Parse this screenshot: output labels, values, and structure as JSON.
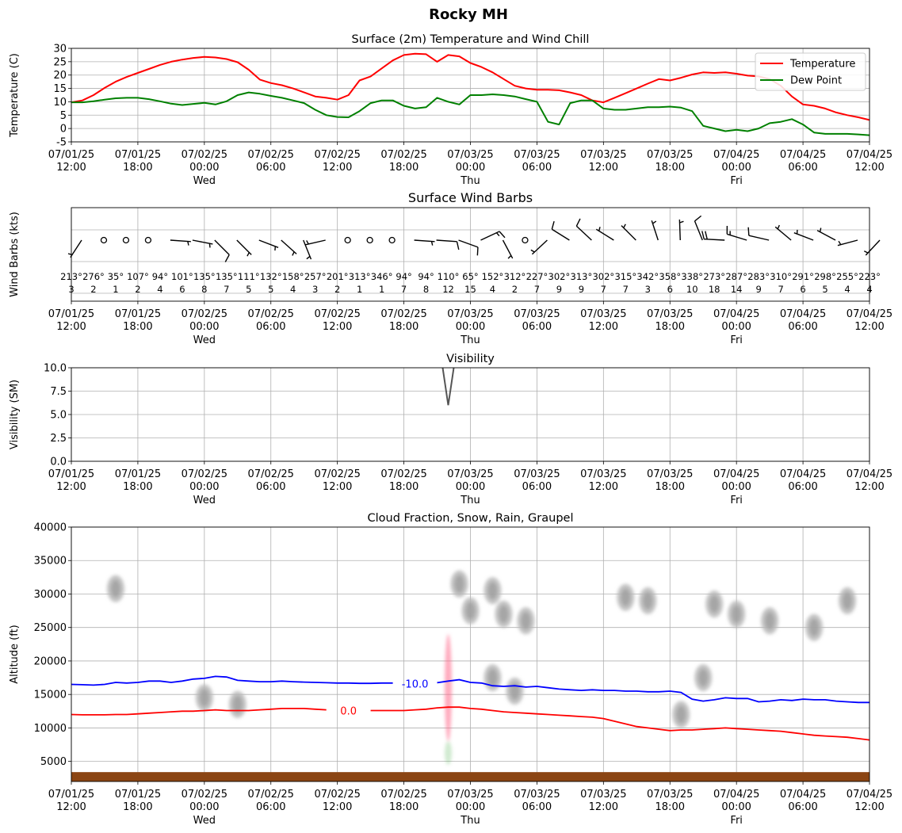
{
  "figure": {
    "title": "Rocky MH"
  },
  "time_axis": {
    "ticks": [
      "07/01/25 12:00",
      "07/01/25 18:00",
      "07/02/25 00:00",
      "07/02/25 06:00",
      "07/02/25 12:00",
      "07/02/25 18:00",
      "07/03/25 00:00",
      "07/03/25 06:00",
      "07/03/25 12:00",
      "07/03/25 18:00",
      "07/04/25 00:00",
      "07/04/25 06:00",
      "07/04/25 12:00"
    ],
    "day_labels": [
      "",
      "",
      "Wed",
      "",
      "",
      "",
      "Thu",
      "",
      "",
      "",
      "Fri",
      "",
      ""
    ]
  },
  "chart_data": [
    {
      "type": "line",
      "title": "Surface (2m) Temperature and Wind Chill",
      "ylabel": "Temperature (C)",
      "ylim": [
        -5,
        30
      ],
      "yticks": [
        -5,
        0,
        5,
        10,
        15,
        20,
        25,
        30
      ],
      "grid": true,
      "legend": "top-right",
      "x": [
        "07/01/25 12:00",
        "07/01/25 13:00",
        "07/01/25 14:00",
        "07/01/25 15:00",
        "07/01/25 16:00",
        "07/01/25 17:00",
        "07/01/25 18:00",
        "07/01/25 19:00",
        "07/01/25 20:00",
        "07/01/25 21:00",
        "07/01/25 22:00",
        "07/01/25 23:00",
        "07/02/25 00:00",
        "07/02/25 01:00",
        "07/02/25 02:00",
        "07/02/25 03:00",
        "07/02/25 04:00",
        "07/02/25 05:00",
        "07/02/25 06:00",
        "07/02/25 07:00",
        "07/02/25 08:00",
        "07/02/25 09:00",
        "07/02/25 10:00",
        "07/02/25 11:00",
        "07/02/25 12:00",
        "07/02/25 13:00",
        "07/02/25 14:00",
        "07/02/25 15:00",
        "07/02/25 16:00",
        "07/02/25 17:00",
        "07/02/25 18:00",
        "07/02/25 19:00",
        "07/02/25 20:00",
        "07/02/25 21:00",
        "07/02/25 22:00",
        "07/02/25 23:00",
        "07/03/25 00:00",
        "07/03/25 01:00",
        "07/03/25 02:00",
        "07/03/25 03:00",
        "07/03/25 04:00",
        "07/03/25 05:00",
        "07/03/25 06:00",
        "07/03/25 07:00",
        "07/03/25 08:00",
        "07/03/25 09:00",
        "07/03/25 10:00",
        "07/03/25 11:00",
        "07/03/25 12:00",
        "07/03/25 13:00",
        "07/03/25 14:00",
        "07/03/25 15:00",
        "07/03/25 16:00",
        "07/03/25 17:00",
        "07/03/25 18:00",
        "07/03/25 19:00",
        "07/03/25 20:00",
        "07/03/25 21:00",
        "07/03/25 22:00",
        "07/03/25 23:00",
        "07/04/25 00:00",
        "07/04/25 01:00",
        "07/04/25 02:00",
        "07/04/25 03:00",
        "07/04/25 04:00",
        "07/04/25 05:00",
        "07/04/25 06:00",
        "07/04/25 07:00",
        "07/04/25 08:00",
        "07/04/25 09:00",
        "07/04/25 10:00",
        "07/04/25 11:00",
        "07/04/25 12:00"
      ],
      "series": [
        {
          "name": "Temperature",
          "color": "#ff0000",
          "values": [
            9.8,
            10.5,
            12.5,
            15.2,
            17.5,
            19.3,
            20.8,
            22.3,
            23.8,
            25.0,
            25.8,
            26.4,
            26.8,
            26.6,
            26.0,
            24.8,
            22.0,
            18.3,
            17.0,
            16.2,
            15.0,
            13.5,
            12.0,
            11.5,
            10.8,
            12.5,
            18.0,
            19.5,
            22.5,
            25.5,
            27.5,
            28.0,
            27.8,
            25.0,
            27.5,
            27.0,
            24.5,
            23.0,
            21.0,
            18.5,
            16.0,
            15.0,
            14.5,
            14.5,
            14.3,
            13.5,
            12.5,
            10.5,
            9.8,
            11.5,
            13.2,
            15.0,
            16.8,
            18.5,
            18.0,
            19.0,
            20.2,
            21.0,
            20.8,
            21.0,
            20.5,
            19.8,
            19.5,
            18.5,
            16.0,
            12.0,
            9.0,
            8.5,
            7.5,
            6.0,
            5.0,
            4.2,
            3.2
          ]
        },
        {
          "name": "Dew Point",
          "color": "#008000",
          "values": [
            9.8,
            9.8,
            10.2,
            10.8,
            11.3,
            11.5,
            11.5,
            11.0,
            10.2,
            9.3,
            8.8,
            9.2,
            9.6,
            9.0,
            10.2,
            12.5,
            13.5,
            13.0,
            12.2,
            11.5,
            10.5,
            9.5,
            7.0,
            5.0,
            4.3,
            4.2,
            6.5,
            9.5,
            10.5,
            10.5,
            8.5,
            7.5,
            8.0,
            11.5,
            10.0,
            9.0,
            12.5,
            12.5,
            12.8,
            12.5,
            12.0,
            11.0,
            10.0,
            2.5,
            1.5,
            9.5,
            10.5,
            10.5,
            7.5,
            7.0,
            7.0,
            7.5,
            8.0,
            8.0,
            8.2,
            7.8,
            6.5,
            1.0,
            0.0,
            -1.0,
            -0.5,
            -1.0,
            0.0,
            2.0,
            2.5,
            3.5,
            1.5,
            -1.5,
            -2.0,
            -2.0,
            -2.0,
            -2.2,
            -2.5
          ]
        }
      ]
    },
    {
      "type": "scatter",
      "title": "Surface Wind Barbs",
      "ylabel": "Wind Barbs (kts)",
      "grid": true,
      "x": [
        "07/01/25 12:00",
        "07/01/25 14:00",
        "07/01/25 16:00",
        "07/01/25 18:00",
        "07/01/25 20:00",
        "07/01/25 22:00",
        "07/02/25 00:00",
        "07/02/25 02:00",
        "07/02/25 04:00",
        "07/02/25 06:00",
        "07/02/25 08:00",
        "07/02/25 10:00",
        "07/02/25 12:00",
        "07/02/25 14:00",
        "07/02/25 16:00",
        "07/02/25 18:00",
        "07/02/25 20:00",
        "07/02/25 22:00",
        "07/03/25 00:00",
        "07/03/25 02:00",
        "07/03/25 04:00",
        "07/03/25 06:00",
        "07/03/25 08:00",
        "07/03/25 10:00",
        "07/03/25 12:00",
        "07/03/25 14:00",
        "07/03/25 16:00",
        "07/03/25 18:00",
        "07/03/25 20:00",
        "07/03/25 22:00",
        "07/04/25 00:00",
        "07/04/25 02:00",
        "07/04/25 04:00",
        "07/04/25 06:00",
        "07/04/25 08:00",
        "07/04/25 10:00",
        "07/04/25 12:00"
      ],
      "directions": [
        213,
        276,
        35,
        107,
        94,
        101,
        135,
        135,
        111,
        132,
        158,
        257,
        201,
        313,
        346,
        94,
        94,
        110,
        65,
        152,
        312,
        227,
        302,
        313,
        302,
        315,
        342,
        358,
        338,
        273,
        287,
        283,
        310,
        291,
        298,
        255,
        223
      ],
      "speeds": [
        3,
        2,
        1,
        2,
        4,
        6,
        8,
        7,
        5,
        5,
        4,
        3,
        2,
        1,
        1,
        7,
        8,
        12,
        15,
        4,
        2,
        7,
        9,
        9,
        7,
        7,
        3,
        6,
        10,
        18,
        14,
        9,
        7,
        6,
        5,
        4,
        4
      ]
    },
    {
      "type": "line",
      "title": "Visibility",
      "ylabel": "Visibility (SM)",
      "ylim": [
        0,
        10
      ],
      "yticks": [
        "0.0",
        "2.5",
        "5.0",
        "7.5",
        "10.0"
      ],
      "grid": true,
      "x": [
        "07/02/25 21:30",
        "07/02/25 22:00",
        "07/02/25 22:30"
      ],
      "values": [
        10.0,
        6.0,
        10.0
      ],
      "color": "#555555"
    },
    {
      "type": "area",
      "title": "Cloud Fraction, Snow, Rain, Graupel",
      "ylabel": "Altitude (ft)",
      "ylim": [
        2000,
        40000
      ],
      "yticks": [
        5000,
        10000,
        15000,
        20000,
        25000,
        30000,
        35000,
        40000
      ],
      "grid": true,
      "contours": [
        {
          "name": "-10.0",
          "color": "#0000ff",
          "values": [
            16500,
            16450,
            16400,
            16500,
            16800,
            16700,
            16800,
            17000,
            17000,
            16800,
            17000,
            17300,
            17400,
            17700,
            17600,
            17100,
            17000,
            16900,
            16900,
            17000,
            16900,
            16850,
            16800,
            16750,
            16700,
            16700,
            16650,
            16650,
            16700,
            16700,
            16650,
            16600,
            16800,
            16750,
            17000,
            17200,
            16800,
            16700,
            16300,
            16200,
            16300,
            16100,
            16200,
            16000,
            15800,
            15700,
            15600,
            15700,
            15600,
            15600,
            15500,
            15500,
            15400,
            15400,
            15500,
            15300,
            14300,
            14000,
            14200,
            14500,
            14400,
            14400,
            13900,
            14000,
            14200,
            14100,
            14300,
            14200,
            14200,
            14000,
            13900,
            13800,
            13800
          ]
        },
        {
          "name": "0.0",
          "color": "#ff0000",
          "values": [
            12000,
            11950,
            11950,
            11950,
            12000,
            12000,
            12100,
            12200,
            12300,
            12400,
            12500,
            12500,
            12600,
            12700,
            12600,
            12600,
            12600,
            12700,
            12800,
            12900,
            12900,
            12900,
            12800,
            12700,
            12600,
            12600,
            12600,
            12600,
            12600,
            12600,
            12600,
            12700,
            12800,
            13000,
            13100,
            13100,
            12900,
            12800,
            12600,
            12400,
            12300,
            12200,
            12100,
            12000,
            11900,
            11800,
            11700,
            11600,
            11400,
            11000,
            10600,
            10200,
            10000,
            9800,
            9600,
            9700,
            9700,
            9800,
            9900,
            10000,
            9900,
            9800,
            9700,
            9600,
            9500,
            9300,
            9100,
            8900,
            8800,
            8700,
            8600,
            8400,
            8200
          ]
        }
      ],
      "cloud_cells": [
        {
          "x": "07/01/25 16:00",
          "y": 30800
        },
        {
          "x": "07/02/25 00:00",
          "y": 14500
        },
        {
          "x": "07/02/25 03:00",
          "y": 13500
        },
        {
          "x": "07/02/25 23:00",
          "y": 31500
        },
        {
          "x": "07/03/25 00:00",
          "y": 27500
        },
        {
          "x": "07/03/25 02:00",
          "y": 30500
        },
        {
          "x": "07/03/25 03:00",
          "y": 27000
        },
        {
          "x": "07/03/25 02:00",
          "y": 17500
        },
        {
          "x": "07/03/25 04:00",
          "y": 15500
        },
        {
          "x": "07/03/25 05:00",
          "y": 26000
        },
        {
          "x": "07/03/25 14:00",
          "y": 29500
        },
        {
          "x": "07/03/25 16:00",
          "y": 29000
        },
        {
          "x": "07/03/25 19:00",
          "y": 12000
        },
        {
          "x": "07/03/25 21:00",
          "y": 17500
        },
        {
          "x": "07/03/25 22:00",
          "y": 28500
        },
        {
          "x": "07/04/25 00:00",
          "y": 27000
        },
        {
          "x": "07/04/25 03:00",
          "y": 26000
        },
        {
          "x": "07/04/25 07:00",
          "y": 25000
        },
        {
          "x": "07/04/25 10:00",
          "y": 29000
        }
      ],
      "precip": [
        {
          "type": "rain",
          "color": "#ff6688",
          "x": "07/02/25 22:00",
          "y_range": [
            8000,
            24000
          ]
        },
        {
          "type": "graupel",
          "color": "#66bb66",
          "x": "07/02/25 22:00",
          "y_range": [
            4500,
            8000
          ]
        }
      ],
      "ground": {
        "color": "#8b4513",
        "y_range": [
          2000,
          3400
        ]
      }
    }
  ]
}
